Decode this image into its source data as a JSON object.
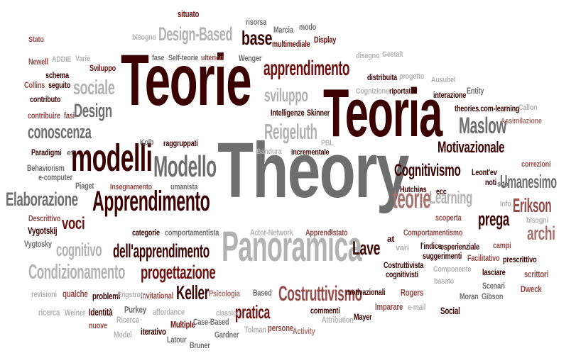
{
  "palette": {
    "dark": "#3b0000",
    "red": "#6e0f0f",
    "mid": "#944a46",
    "rose": "#a6716d",
    "grey": "#6e6e6e",
    "light": "#b2b2b2"
  },
  "words": [
    {
      "text": "Theory",
      "color": "grey",
      "rot": 0
    },
    {
      "text": "Teorie",
      "color": "dark",
      "rot": 0
    },
    {
      "text": "Teoria",
      "color": "dark",
      "rot": 0
    },
    {
      "text": "Panoramica",
      "color": "light",
      "rot": 0
    },
    {
      "text": "modelli",
      "color": "dark",
      "rot": 0
    },
    {
      "text": "Apprendimento",
      "color": "dark",
      "rot": 0
    },
    {
      "text": "Modello",
      "color": "grey",
      "rot": 0
    },
    {
      "text": "Motivazionale",
      "color": "dark",
      "rot": 0
    },
    {
      "text": "Maslow",
      "color": "grey",
      "rot": 0
    },
    {
      "text": "Costruttivismo",
      "color": "mid",
      "rot": 0
    },
    {
      "text": "Cognitivismo",
      "color": "dark",
      "rot": 0
    },
    {
      "text": "Umanesimo",
      "color": "grey",
      "rot": 0
    },
    {
      "text": "Elaborazione",
      "color": "grey",
      "rot": 0
    },
    {
      "text": "Condizionamento",
      "color": "light",
      "rot": 0
    },
    {
      "text": "apprendimento",
      "color": "red",
      "rot": 0
    },
    {
      "text": "progettazione",
      "color": "red",
      "rot": 0
    },
    {
      "text": "dell'apprendimento",
      "color": "dark",
      "rot": 0
    },
    {
      "text": "Design-Based",
      "color": "light",
      "rot": 0
    },
    {
      "text": "conoscenza",
      "color": "grey",
      "rot": 0
    },
    {
      "text": "Design",
      "color": "grey",
      "rot": 0
    },
    {
      "text": "sociale",
      "color": "light",
      "rot": 0
    },
    {
      "text": "Reigeluth",
      "color": "light",
      "rot": 0
    },
    {
      "text": "sviluppo",
      "color": "light",
      "rot": 0
    },
    {
      "text": "teorie",
      "color": "rose",
      "rot": 0
    },
    {
      "text": "Learning",
      "color": "light",
      "rot": 0
    },
    {
      "text": "Erikson",
      "color": "mid",
      "rot": 0
    },
    {
      "text": "prega",
      "color": "dark",
      "rot": 0
    },
    {
      "text": "archi",
      "color": "rose",
      "rot": 0
    },
    {
      "text": "Lave",
      "color": "dark",
      "rot": 0
    },
    {
      "text": "pratica",
      "color": "red",
      "rot": 0
    },
    {
      "text": "Keller",
      "color": "dark",
      "rot": 0
    },
    {
      "text": "cognitivo",
      "color": "light",
      "rot": 0
    },
    {
      "text": "voci",
      "color": "red",
      "rot": 0
    },
    {
      "text": "base",
      "color": "dark",
      "rot": 0
    },
    {
      "text": "Bandura",
      "color": "light",
      "rot": 0
    },
    {
      "text": "Paradigmi",
      "color": "dark",
      "rot": 0
    },
    {
      "text": "Behaviorism",
      "color": "grey",
      "rot": 0
    },
    {
      "text": "e-computer",
      "color": "grey",
      "rot": 0
    },
    {
      "text": "Piaget",
      "color": "grey",
      "rot": 0
    },
    {
      "text": "Descrittivo",
      "color": "mid",
      "rot": 0
    },
    {
      "text": "Vygotskij",
      "color": "dark",
      "rot": 0
    },
    {
      "text": "Vygtosky",
      "color": "grey",
      "rot": 0
    },
    {
      "text": "revisioni",
      "color": "light",
      "rot": 0
    },
    {
      "text": "qualche",
      "color": "mid",
      "rot": 0
    },
    {
      "text": "problemi",
      "color": "dark",
      "rot": 0
    },
    {
      "text": "ricerca",
      "color": "light",
      "rot": 0
    },
    {
      "text": "Weiner",
      "color": "light",
      "rot": 0
    },
    {
      "text": "Identità",
      "color": "dark",
      "rot": 0
    },
    {
      "text": "nuove",
      "color": "mid",
      "rot": 0
    },
    {
      "text": "Purkey",
      "color": "grey",
      "rot": 0
    },
    {
      "text": "affordance",
      "color": "light",
      "rot": 0
    },
    {
      "text": "Ricerca",
      "color": "light",
      "rot": 0
    },
    {
      "text": "Model",
      "color": "light",
      "rot": 0
    },
    {
      "text": "iterativo",
      "color": "dark",
      "rot": 0
    },
    {
      "text": "Multiple",
      "color": "red",
      "rot": 0
    },
    {
      "text": "Case-Based",
      "color": "grey",
      "rot": 0
    },
    {
      "text": "Latour",
      "color": "grey",
      "rot": 0
    },
    {
      "text": "Gardner",
      "color": "grey",
      "rot": 0
    },
    {
      "text": "Bruner",
      "color": "grey",
      "rot": 0
    },
    {
      "text": "Tolman",
      "color": "light",
      "rot": 0
    },
    {
      "text": "persone",
      "color": "mid",
      "rot": 0
    },
    {
      "text": "Activity",
      "color": "rose",
      "rot": 0
    },
    {
      "text": "Attribution",
      "color": "light",
      "rot": 0
    },
    {
      "text": "commenti",
      "color": "dark",
      "rot": 0
    },
    {
      "text": "Imparare",
      "color": "mid",
      "rot": 0
    },
    {
      "text": "Mayer",
      "color": "dark",
      "rot": 0
    },
    {
      "text": "e-mail",
      "color": "light",
      "rot": 0
    },
    {
      "text": "Social",
      "color": "dark",
      "rot": 0
    },
    {
      "text": "Rogers",
      "color": "mid",
      "rot": 0
    },
    {
      "text": "motivazionali",
      "color": "dark",
      "rot": 0
    },
    {
      "text": "Costruttivista",
      "color": "dark",
      "rot": 0
    },
    {
      "text": "cognitivisti",
      "color": "dark",
      "rot": 0
    },
    {
      "text": "basato",
      "color": "light",
      "rot": 0
    },
    {
      "text": "Componente",
      "color": "light",
      "rot": 0
    },
    {
      "text": "lasciare",
      "color": "dark",
      "rot": 0
    },
    {
      "text": "Scenari",
      "color": "grey",
      "rot": 0
    },
    {
      "text": "Moran",
      "color": "grey",
      "rot": 0
    },
    {
      "text": "Gibson",
      "color": "grey",
      "rot": 0
    },
    {
      "text": "Dweck",
      "color": "mid",
      "rot": 0
    },
    {
      "text": "scrittori",
      "color": "mid",
      "rot": 0
    },
    {
      "text": "prescrittivo",
      "color": "dark",
      "rot": 0
    },
    {
      "text": "Facilitativo",
      "color": "mid",
      "rot": 0
    },
    {
      "text": "suggerimenti",
      "color": "dark",
      "rot": 0
    },
    {
      "text": "esperienziale",
      "color": "dark",
      "rot": 0
    },
    {
      "text": "l'indice",
      "color": "dark",
      "rot": 0
    },
    {
      "text": "campi",
      "color": "mid",
      "rot": 0
    },
    {
      "text": "Comportamentismo",
      "color": "mid",
      "rot": 0
    },
    {
      "text": "scoperta",
      "color": "mid",
      "rot": 0
    },
    {
      "text": "Info",
      "color": "light",
      "rot": 0
    },
    {
      "text": "bisogni",
      "color": "light",
      "rot": 0
    },
    {
      "text": "Apprendistato",
      "color": "mid",
      "rot": 0
    },
    {
      "text": "Actor-Network",
      "color": "light",
      "rot": 0
    },
    {
      "text": "Psicologia",
      "color": "rose",
      "rot": 0
    },
    {
      "text": "classico",
      "color": "light",
      "rot": 0
    },
    {
      "text": "Based",
      "color": "grey",
      "rot": 0
    },
    {
      "text": "Invitational",
      "color": "mid",
      "rot": 0
    },
    {
      "text": "Engstrom",
      "color": "light",
      "rot": 0
    },
    {
      "text": "at",
      "color": "dark",
      "rot": 0
    },
    {
      "text": "vari",
      "color": "light",
      "rot": 0
    },
    {
      "text": "categorie",
      "color": "dark",
      "rot": 0
    },
    {
      "text": "comportamentista",
      "color": "grey",
      "rot": 0
    },
    {
      "text": "Insegnamento",
      "color": "mid",
      "rot": 0
    },
    {
      "text": "umanista",
      "color": "grey",
      "rot": 0
    },
    {
      "text": "incrementale",
      "color": "dark",
      "rot": 0
    },
    {
      "text": "PBL",
      "color": "light",
      "rot": 0
    },
    {
      "text": "raggruppati",
      "color": "dark",
      "rot": 0
    },
    {
      "text": "Kolb",
      "color": "grey",
      "rot": 0
    },
    {
      "text": "Hutchins",
      "color": "dark",
      "rot": 0
    },
    {
      "text": "ecc",
      "color": "dark",
      "rot": 0
    },
    {
      "text": "Leont'ev",
      "color": "dark",
      "rot": 0
    },
    {
      "text": "noti",
      "color": "dark",
      "rot": 0
    },
    {
      "text": "sito",
      "color": "grey",
      "rot": 0
    },
    {
      "text": "correzioni",
      "color": "mid",
      "rot": 0
    },
    {
      "text": "Assimilazione",
      "color": "rose",
      "rot": 0
    },
    {
      "text": "theories.com-learning",
      "color": "dark",
      "rot": 0
    },
    {
      "text": "Callon",
      "color": "light",
      "rot": 0
    },
    {
      "text": "Entity",
      "color": "grey",
      "rot": 0
    },
    {
      "text": "interazione",
      "color": "dark",
      "rot": 0
    },
    {
      "text": "Ausubel",
      "color": "light",
      "rot": 0
    },
    {
      "text": "Cognizione",
      "color": "light",
      "rot": 0
    },
    {
      "text": "riportato",
      "color": "dark",
      "rot": 0
    },
    {
      "text": "progetto",
      "color": "light",
      "rot": 0
    },
    {
      "text": "distribuita",
      "color": "dark",
      "rot": 0
    },
    {
      "text": "Skinner",
      "color": "dark",
      "rot": 0
    },
    {
      "text": "Intelligenze",
      "color": "dark",
      "rot": 0
    },
    {
      "text": "disegno",
      "color": "light",
      "rot": 0
    },
    {
      "text": "Gestalt",
      "color": "light",
      "rot": 0
    },
    {
      "text": "Wenger",
      "color": "grey",
      "rot": 0
    },
    {
      "text": "multimediale",
      "color": "red",
      "rot": 0
    },
    {
      "text": "Display",
      "color": "red",
      "rot": 0
    },
    {
      "text": "risorsa",
      "color": "grey",
      "rot": 0
    },
    {
      "text": "Marcia",
      "color": "grey",
      "rot": 0
    },
    {
      "text": "modo",
      "color": "grey",
      "rot": 0
    },
    {
      "text": "situato",
      "color": "red",
      "rot": 0
    },
    {
      "text": "bisogno",
      "color": "light",
      "rot": 0
    },
    {
      "text": "fase",
      "color": "grey",
      "rot": 0
    },
    {
      "text": "Self-teorie",
      "color": "grey",
      "rot": 0
    },
    {
      "text": "ulteriori",
      "color": "mid",
      "rot": 0
    },
    {
      "text": "Stato",
      "color": "mid",
      "rot": 0
    },
    {
      "text": "Newell",
      "color": "mid",
      "rot": 0
    },
    {
      "text": "ADDIE",
      "color": "light",
      "rot": 0
    },
    {
      "text": "Varie",
      "color": "light",
      "rot": 0
    },
    {
      "text": "Sviluppo",
      "color": "red",
      "rot": 0
    },
    {
      "text": "schema",
      "color": "dark",
      "rot": 0
    },
    {
      "text": "Collins",
      "color": "mid",
      "rot": 0
    },
    {
      "text": "seguito",
      "color": "dark",
      "rot": 0
    },
    {
      "text": "contributo",
      "color": "dark",
      "rot": 0
    },
    {
      "text": "contribuire",
      "color": "mid",
      "rot": 0
    },
    {
      "text": "fasi",
      "color": "mid",
      "rot": 0
    },
    {
      "text": "et",
      "color": "grey",
      "rot": 0
    }
  ]
}
